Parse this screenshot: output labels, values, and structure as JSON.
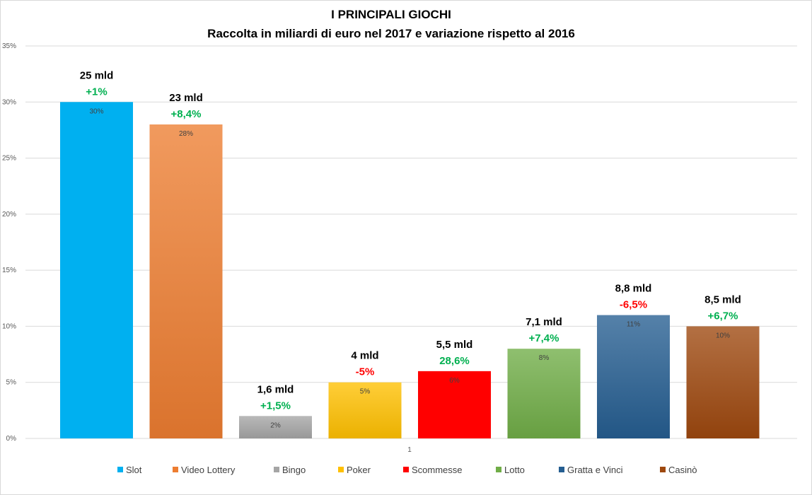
{
  "chart_data": {
    "type": "bar",
    "title": "I PRINCIPALI GIOCHI",
    "subtitle": "Raccolta in miliardi di euro nel 2017 e variazione rispetto al 2016",
    "category_label": "1",
    "ylim": [
      0,
      35
    ],
    "yticks": [
      "0%",
      "5%",
      "10%",
      "15%",
      "20%",
      "25%",
      "30%",
      "35%"
    ],
    "grid": true,
    "legend_position": "bottom",
    "series": [
      {
        "name": "Slot",
        "value": 30,
        "label": "30%",
        "amount": "25 mld",
        "change": "+1%",
        "change_sign": "positive",
        "color": "#00b0f0"
      },
      {
        "name": "Video Lottery",
        "value": 28,
        "label": "28%",
        "amount": "23 mld",
        "change": "+8,4%",
        "change_sign": "positive",
        "color": "#ed7d31"
      },
      {
        "name": "Bingo",
        "value": 2,
        "label": "2%",
        "amount": "1,6 mld",
        "change": "+1,5%",
        "change_sign": "positive",
        "color": "#a5a5a5"
      },
      {
        "name": "Poker",
        "value": 5,
        "label": "5%",
        "amount": "4 mld",
        "change": "-5%",
        "change_sign": "negative",
        "color": "#ffc000"
      },
      {
        "name": "Scommesse",
        "value": 6,
        "label": "6%",
        "amount": "5,5 mld",
        "change": "28,6%",
        "change_sign": "positive",
        "color": "#ff0000"
      },
      {
        "name": "Lotto",
        "value": 8,
        "label": "8%",
        "amount": "7,1 mld",
        "change": "+7,4%",
        "change_sign": "positive",
        "color": "#70ad47"
      },
      {
        "name": "Gratta e Vinci",
        "value": 11,
        "label": "11%",
        "amount": "8,8 mld",
        "change": "-6,5%",
        "change_sign": "negative",
        "color": "#255e91"
      },
      {
        "name": "Casinò",
        "value": 10,
        "label": "10%",
        "amount": "8,5 mld",
        "change": "+6,7%",
        "change_sign": "positive",
        "color": "#9e480e"
      }
    ],
    "positive_color": "#00b050",
    "negative_color": "#ff0000"
  }
}
